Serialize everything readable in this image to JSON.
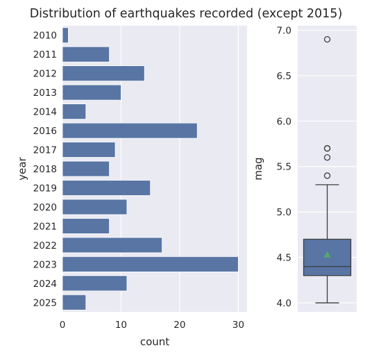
{
  "title": "Distribution of earthquakes recorded (except 2015)",
  "colors": {
    "bar": "#5875a4",
    "panel": "#eaeaf2",
    "grid": "#ffffff",
    "box": "#5875a4",
    "line": "#3d3d3d",
    "mean": "#55a868"
  },
  "chart_data": [
    {
      "type": "bar",
      "orientation": "horizontal",
      "categories": [
        "2010",
        "2011",
        "2012",
        "2013",
        "2014",
        "2016",
        "2017",
        "2018",
        "2019",
        "2020",
        "2021",
        "2022",
        "2023",
        "2024",
        "2025"
      ],
      "values": [
        1,
        8,
        14,
        10,
        4,
        23,
        9,
        8,
        15,
        11,
        8,
        17,
        30,
        11,
        4
      ],
      "xlabel": "count",
      "ylabel": "year",
      "xlim": [
        0,
        31.5
      ],
      "xticks": [
        0,
        10,
        20,
        30
      ],
      "grid": true
    },
    {
      "type": "box",
      "ylabel": "mag",
      "ylim": [
        3.9,
        7.05
      ],
      "yticks": [
        4.0,
        4.5,
        5.0,
        5.5,
        6.0,
        6.5,
        7.0
      ],
      "ytick_labels": [
        "4.0",
        "4.5",
        "5.0",
        "5.5",
        "6.0",
        "6.5",
        "7.0"
      ],
      "whisker_low": 4.0,
      "q1": 4.3,
      "median": 4.4,
      "q3": 4.7,
      "whisker_high": 5.3,
      "mean": 4.53,
      "outliers": [
        5.4,
        5.6,
        5.7,
        5.7,
        6.9
      ],
      "grid": true
    }
  ]
}
